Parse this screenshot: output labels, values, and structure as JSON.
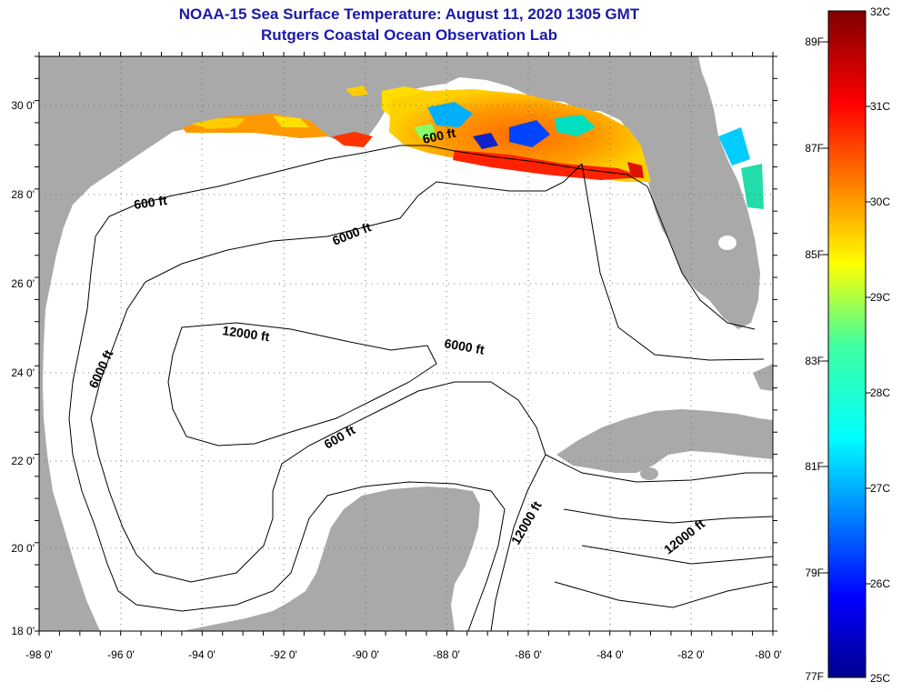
{
  "header": {
    "title_line1": "NOAA-15 Sea Surface Temperature:  August 11, 2020 1305 GMT",
    "title_line2": "Rutgers Coastal Ocean Observation Lab"
  },
  "map": {
    "lon_ticks": [
      "-98 0'",
      "-96 0'",
      "-94 0'",
      "-92 0'",
      "-90 0'",
      "-88 0'",
      "-86 0'",
      "-84 0'",
      "-82 0'",
      "-80 0'"
    ],
    "lat_ticks": [
      "30 0'",
      "28 0'",
      "26 0'",
      "24 0'",
      "22 0'",
      "20 0'",
      "18 0'"
    ],
    "contour_labels": {
      "c600_west": "600 ft",
      "c600_north": "600 ft",
      "c600_yucatan": "600 ft",
      "c6000_north": "6000 ft",
      "c6000_west": "6000 ft",
      "c6000_east": "6000 ft",
      "c12000_center": "12000 ft",
      "c12000_strait": "12000 ft",
      "c12000_caribbean": "12000 ft"
    },
    "colors": {
      "land": "#a9a9a9",
      "water": "#ffffff"
    }
  },
  "colorbar": {
    "f_labels": [
      "89F",
      "87F",
      "85F",
      "83F",
      "81F",
      "79F",
      "77F"
    ],
    "c_labels": [
      "32C",
      "31C",
      "30C",
      "29C",
      "28C",
      "27C",
      "26C",
      "25C"
    ]
  }
}
